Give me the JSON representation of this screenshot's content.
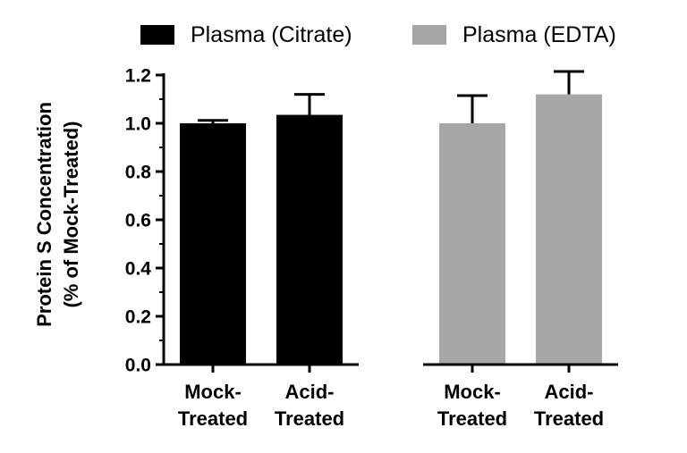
{
  "chart_data": {
    "type": "bar",
    "title": "",
    "xlabel": "",
    "ylabel_line1": "Protein S Concentration",
    "ylabel_line2": "(% of Mock-Treated)",
    "ylim": [
      0,
      1.2
    ],
    "yticks": [
      "0.0",
      "0.2",
      "0.4",
      "0.6",
      "0.8",
      "1.0",
      "1.2"
    ],
    "legend": {
      "position": "top",
      "entries": [
        {
          "name": "Plasma (Citrate)",
          "color": "#000000"
        },
        {
          "name": "Plasma (EDTA)",
          "color": "#a6a6a7"
        }
      ]
    },
    "categories": [
      {
        "line1": "Mock-",
        "line2": "Treated"
      },
      {
        "line1": "Acid-",
        "line2": "Treated"
      },
      {
        "line1": "Mock-",
        "line2": "Treated"
      },
      {
        "line1": "Acid-",
        "line2": "Treated"
      }
    ],
    "series": [
      {
        "name": "Plasma (Citrate)",
        "color": "#000000",
        "bars": [
          {
            "category": 0,
            "value": 1.0,
            "error": 0.012
          },
          {
            "category": 1,
            "value": 1.035,
            "error": 0.085
          }
        ]
      },
      {
        "name": "Plasma (EDTA)",
        "color": "#a6a6a7",
        "bars": [
          {
            "category": 2,
            "value": 1.0,
            "error": 0.115
          },
          {
            "category": 3,
            "value": 1.12,
            "error": 0.095
          }
        ]
      }
    ]
  }
}
